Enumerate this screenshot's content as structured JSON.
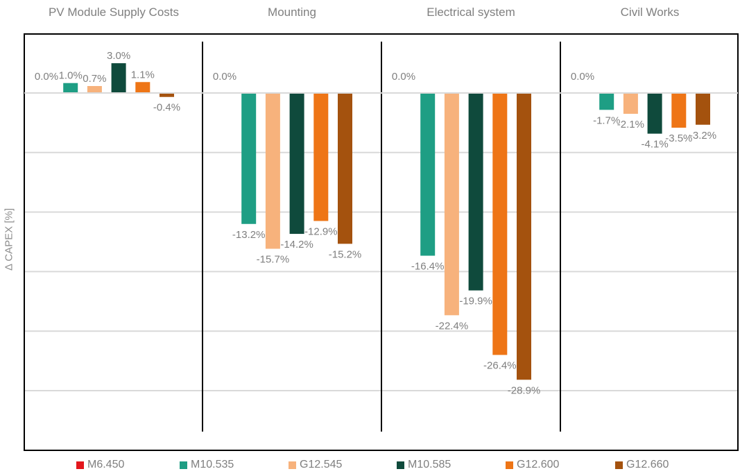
{
  "chart_data": {
    "type": "bar",
    "ylabel": "Δ CAPEX [%]",
    "ylim": [
      -35,
      5
    ],
    "grid": true,
    "legend_position": "bottom",
    "groups": [
      {
        "name": "PV Module Supply Costs",
        "values": [
          0.0,
          1.0,
          0.7,
          3.0,
          1.1,
          -0.4
        ],
        "labels": [
          "0.0%",
          "1.0%",
          "0.7%",
          "3.0%",
          "1.1%",
          "-0.4%"
        ]
      },
      {
        "name": "Mounting",
        "values": [
          0.0,
          -13.2,
          -15.7,
          -14.2,
          -12.9,
          -15.2
        ],
        "labels": [
          "0.0%",
          "-13.2%",
          "-15.7%",
          "-14.2%",
          "-12.9%",
          "-15.2%"
        ]
      },
      {
        "name": "Electrical system",
        "values": [
          0.0,
          -16.4,
          -22.4,
          -19.9,
          -26.4,
          -28.9
        ],
        "labels": [
          "0.0%",
          "-16.4%",
          "-22.4%",
          "-19.9%",
          "-26.4%",
          "-28.9%"
        ]
      },
      {
        "name": "Civil Works",
        "values": [
          0.0,
          -1.7,
          -2.1,
          -4.1,
          -3.5,
          -3.2
        ],
        "labels": [
          "0.0%",
          "-1.7%",
          "-2.1%",
          "-4.1%",
          "-3.5%",
          "-3.2%"
        ]
      }
    ],
    "series": [
      {
        "name": "M6.450",
        "color": "#e3171d"
      },
      {
        "name": "M10.535",
        "color": "#1e9e84"
      },
      {
        "name": "G12.545",
        "color": "#f7b27c"
      },
      {
        "name": "M10.585",
        "color": "#0f4a3c"
      },
      {
        "name": "G12.600",
        "color": "#ee7516"
      },
      {
        "name": "G12.660",
        "color": "#a4520e"
      }
    ]
  }
}
